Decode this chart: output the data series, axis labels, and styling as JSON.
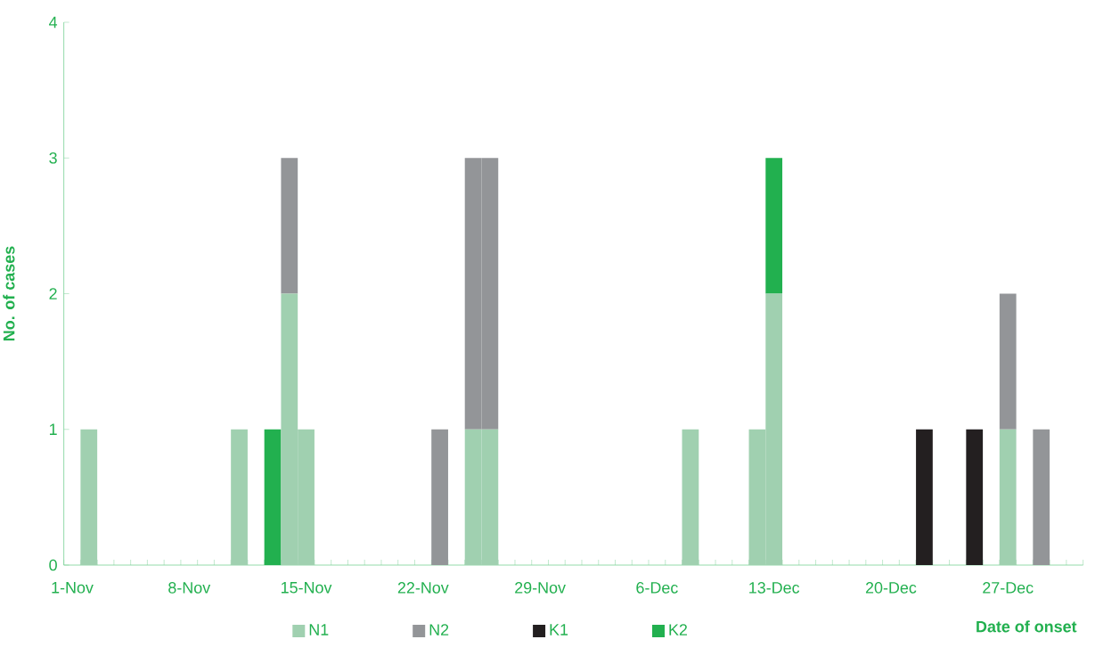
{
  "chart_data": {
    "type": "bar",
    "stacked": true,
    "xlabel": "Date of onset",
    "ylabel": "No. of cases",
    "categories": [
      "1-Nov",
      null,
      null,
      null,
      null,
      null,
      null,
      "8-Nov",
      null,
      null,
      null,
      null,
      null,
      null,
      "15-Nov",
      null,
      null,
      null,
      null,
      null,
      null,
      "22-Nov",
      null,
      null,
      null,
      null,
      null,
      null,
      "29-Nov",
      null,
      null,
      null,
      null,
      null,
      null,
      "6-Dec",
      null,
      null,
      null,
      null,
      null,
      null,
      "13-Dec",
      null,
      null,
      null,
      null,
      null,
      null,
      "20-Dec",
      null,
      null,
      null,
      null,
      null,
      null,
      "27-Dec",
      null,
      null,
      null,
      null
    ],
    "series": [
      {
        "name": "N1",
        "color": "#a0d0b0",
        "values": [
          0,
          1,
          0,
          0,
          0,
          0,
          0,
          0,
          0,
          0,
          1,
          0,
          0,
          2,
          1,
          0,
          0,
          0,
          0,
          0,
          0,
          0,
          0,
          0,
          1,
          1,
          0,
          0,
          0,
          0,
          0,
          0,
          0,
          0,
          0,
          0,
          0,
          1,
          0,
          0,
          0,
          1,
          2,
          0,
          0,
          0,
          0,
          0,
          0,
          0,
          0,
          0,
          0,
          0,
          0,
          0,
          1,
          0,
          0,
          0,
          0
        ]
      },
      {
        "name": "N2",
        "color": "#939598",
        "values": [
          0,
          0,
          0,
          0,
          0,
          0,
          0,
          0,
          0,
          0,
          0,
          0,
          0,
          1,
          0,
          0,
          0,
          0,
          0,
          0,
          0,
          0,
          1,
          0,
          2,
          2,
          0,
          0,
          0,
          0,
          0,
          0,
          0,
          0,
          0,
          0,
          0,
          0,
          0,
          0,
          0,
          0,
          0,
          0,
          0,
          0,
          0,
          0,
          0,
          0,
          0,
          0,
          0,
          0,
          0,
          0,
          1,
          0,
          1,
          0,
          0
        ]
      },
      {
        "name": "K1",
        "color": "#231f20",
        "values": [
          0,
          0,
          0,
          0,
          0,
          0,
          0,
          0,
          0,
          0,
          0,
          0,
          0,
          0,
          0,
          0,
          0,
          0,
          0,
          0,
          0,
          0,
          0,
          0,
          0,
          0,
          0,
          0,
          0,
          0,
          0,
          0,
          0,
          0,
          0,
          0,
          0,
          0,
          0,
          0,
          0,
          0,
          0,
          0,
          0,
          0,
          0,
          0,
          0,
          0,
          0,
          1,
          0,
          0,
          1,
          0,
          0,
          0,
          0,
          0,
          0
        ]
      },
      {
        "name": "K2",
        "color": "#22b04f",
        "values": [
          0,
          0,
          0,
          0,
          0,
          0,
          0,
          0,
          0,
          0,
          0,
          0,
          1,
          0,
          0,
          0,
          0,
          0,
          0,
          0,
          0,
          0,
          0,
          0,
          0,
          0,
          0,
          0,
          0,
          0,
          0,
          0,
          0,
          0,
          0,
          0,
          0,
          0,
          0,
          0,
          0,
          0,
          1,
          0,
          0,
          0,
          0,
          0,
          0,
          0,
          0,
          0,
          0,
          0,
          0,
          0,
          0,
          0,
          0,
          0,
          0
        ]
      }
    ],
    "ylim": [
      0,
      4
    ],
    "yticks": [
      0,
      1,
      2,
      3,
      4
    ],
    "grid": false,
    "legend": "bottom"
  }
}
